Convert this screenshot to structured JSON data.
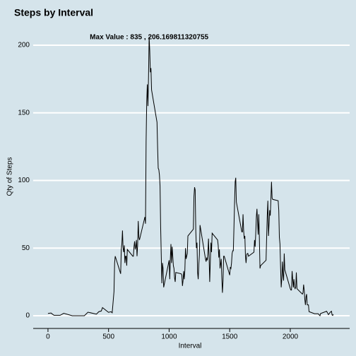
{
  "chart_data": {
    "type": "line",
    "title": "Steps by Interval",
    "annotation": "Max Value : 835 , 206.169811320755",
    "x_label": "Interval",
    "y_label": "Qty of Steps",
    "x": [
      0,
      25,
      50,
      100,
      130,
      200,
      300,
      330,
      400,
      420,
      440,
      450,
      500,
      520,
      530,
      545,
      550,
      555,
      600,
      605,
      610,
      615,
      620,
      625,
      630,
      635,
      640,
      645,
      650,
      655,
      700,
      705,
      710,
      715,
      720,
      725,
      730,
      735,
      740,
      745,
      750,
      755,
      800,
      805,
      810,
      815,
      820,
      825,
      830,
      835,
      840,
      845,
      850,
      855,
      900,
      905,
      910,
      915,
      920,
      925,
      930,
      935,
      940,
      945,
      950,
      955,
      1000,
      1005,
      1010,
      1015,
      1020,
      1025,
      1030,
      1035,
      1040,
      1045,
      1050,
      1055,
      1100,
      1105,
      1110,
      1115,
      1120,
      1125,
      1130,
      1135,
      1140,
      1145,
      1150,
      1155,
      1200,
      1205,
      1210,
      1215,
      1220,
      1225,
      1230,
      1235,
      1240,
      1245,
      1250,
      1255,
      1300,
      1305,
      1310,
      1315,
      1320,
      1325,
      1330,
      1335,
      1340,
      1345,
      1350,
      1355,
      1400,
      1405,
      1410,
      1415,
      1420,
      1425,
      1430,
      1435,
      1440,
      1445,
      1450,
      1455,
      1500,
      1505,
      1510,
      1515,
      1520,
      1525,
      1530,
      1535,
      1540,
      1545,
      1550,
      1555,
      1600,
      1605,
      1610,
      1615,
      1620,
      1625,
      1630,
      1635,
      1640,
      1645,
      1650,
      1655,
      1700,
      1705,
      1710,
      1715,
      1720,
      1725,
      1730,
      1735,
      1740,
      1745,
      1750,
      1755,
      1800,
      1805,
      1810,
      1815,
      1820,
      1825,
      1830,
      1835,
      1840,
      1845,
      1850,
      1855,
      1900,
      1905,
      1910,
      1915,
      1920,
      1925,
      1930,
      1935,
      1940,
      1945,
      1950,
      1955,
      2000,
      2005,
      2010,
      2015,
      2020,
      2025,
      2030,
      2035,
      2040,
      2045,
      2050,
      2055,
      2100,
      2105,
      2110,
      2115,
      2120,
      2125,
      2130,
      2135,
      2140,
      2145,
      2150,
      2155,
      2200,
      2230,
      2245,
      2250,
      2300,
      2315,
      2330,
      2340,
      2345,
      2350,
      2355
    ],
    "series": [
      {
        "name": "Steps",
        "color": "#000000",
        "values": [
          1.7,
          2,
          0.3,
          0.3,
          1.8,
          0,
          0,
          2.6,
          1.2,
          3,
          3.5,
          6,
          2.5,
          3,
          2.2,
          18,
          39,
          44,
          31,
          49,
          53,
          63,
          50,
          47,
          52,
          39,
          44,
          44,
          37,
          49,
          44,
          44,
          51,
          55,
          49,
          51,
          56,
          44,
          52,
          70,
          58,
          56,
          73,
          68,
          129,
          158,
          171,
          155,
          177,
          206.169811320755,
          196,
          180,
          183,
          167,
          143,
          124,
          109,
          108,
          104,
          96,
          66,
          45,
          24,
          39,
          35,
          21,
          41,
          27,
          42,
          53,
          39,
          51,
          44,
          37,
          35,
          28,
          25,
          32,
          31,
          30,
          22,
          26,
          33,
          27,
          34,
          50,
          42,
          44,
          46,
          59,
          64,
          88,
          95,
          93,
          63,
          50,
          54,
          32,
          27,
          38,
          45,
          67,
          42,
          40,
          43,
          41,
          46,
          57,
          43,
          25,
          40,
          54,
          47,
          61,
          56,
          52,
          43,
          49,
          35,
          38,
          42,
          28,
          17,
          26,
          44,
          44,
          30,
          36,
          35,
          39,
          46,
          48,
          48,
          65,
          83,
          99,
          102,
          84,
          62,
          62,
          75,
          63,
          57,
          59,
          44,
          39,
          45,
          46,
          46,
          44,
          47,
          56,
          51,
          61,
          73,
          79,
          69,
          60,
          75,
          57,
          35,
          37,
          41,
          58,
          74,
          85,
          59,
          68,
          78,
          74,
          86,
          99,
          87,
          86,
          85,
          78,
          58,
          53,
          36,
          21,
          27,
          40,
          30,
          26,
          46,
          34,
          20,
          19,
          19,
          33,
          27,
          21,
          27,
          21,
          20,
          21,
          32,
          20,
          16,
          17,
          23,
          19,
          12,
          8,
          14,
          16,
          8,
          8,
          8,
          3,
          1.5,
          1.5,
          0,
          1.6,
          3.3,
          0.8,
          2.6,
          3.3,
          0.6,
          0.2,
          1.1
        ]
      }
    ],
    "xlim": [
      -122,
      2490
    ],
    "ylim": [
      -9.4,
      212.5
    ],
    "xticks": [
      0,
      500,
      1000,
      1500,
      2000
    ],
    "yticks": [
      0,
      50,
      100,
      150,
      200
    ],
    "grid": true
  }
}
